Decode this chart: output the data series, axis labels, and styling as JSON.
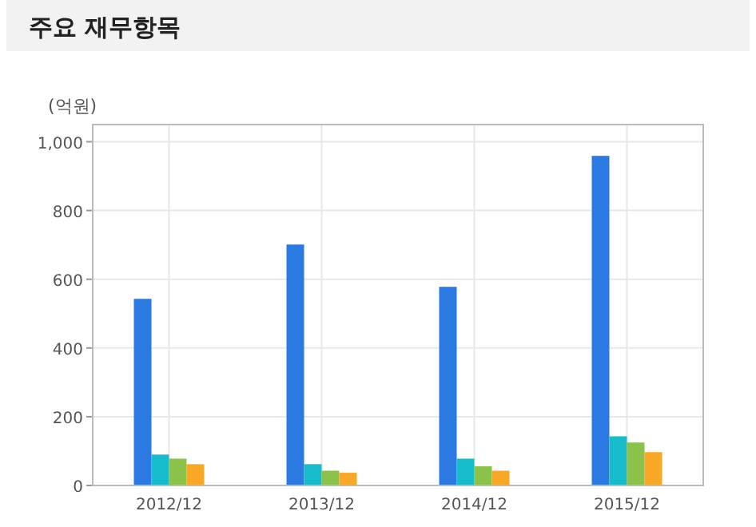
{
  "chart_data": {
    "type": "bar",
    "title": "주요 재무항목",
    "ylabel": "(억원)",
    "categories": [
      "2012/12",
      "2013/12",
      "2014/12",
      "2015/12"
    ],
    "series": [
      {
        "color": "#2a7ae2",
        "values": [
          543,
          701,
          578,
          959
        ]
      },
      {
        "color": "#17bccc",
        "values": [
          90,
          62,
          78,
          143
        ]
      },
      {
        "color": "#8bc34a",
        "values": [
          78,
          43,
          56,
          125
        ]
      },
      {
        "color": "#f9a825",
        "values": [
          62,
          37,
          43,
          97
        ]
      }
    ],
    "ylim": [
      0,
      1050
    ],
    "yticks": [
      0,
      200,
      400,
      600,
      800,
      {
        "value": 1000,
        "label": "1,000"
      }
    ],
    "grid": true
  }
}
